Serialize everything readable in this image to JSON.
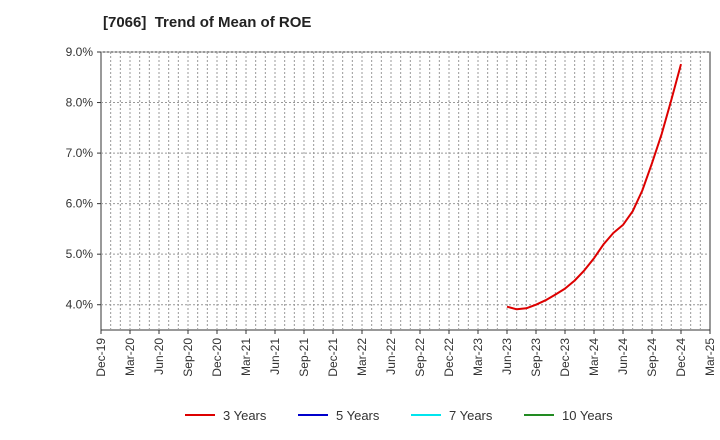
{
  "chart_data": {
    "type": "line",
    "title": "[7066]  Trend of Mean of ROE",
    "xlabel": "",
    "ylabel": "",
    "ylim": [
      3.5,
      9.0
    ],
    "yticks": [
      {
        "value": 4.0,
        "label": "4.0%"
      },
      {
        "value": 5.0,
        "label": "5.0%"
      },
      {
        "value": 6.0,
        "label": "6.0%"
      },
      {
        "value": 7.0,
        "label": "7.0%"
      },
      {
        "value": 8.0,
        "label": "8.0%"
      },
      {
        "value": 9.0,
        "label": "9.0%"
      }
    ],
    "x_categories": [
      "Dec-19",
      "Mar-20",
      "Jun-20",
      "Sep-20",
      "Dec-20",
      "Mar-21",
      "Jun-21",
      "Sep-21",
      "Dec-21",
      "Mar-22",
      "Jun-22",
      "Sep-22",
      "Dec-22",
      "Mar-23",
      "Jun-23",
      "Sep-23",
      "Dec-23",
      "Mar-24",
      "Jun-24",
      "Sep-24",
      "Dec-24",
      "Mar-25"
    ],
    "grid": true,
    "legend_position": "bottom",
    "series": [
      {
        "name": "3 Years",
        "color": "#dd0000",
        "x": [
          "Jun-23",
          "Jul-23",
          "Aug-23",
          "Sep-23",
          "Oct-23",
          "Nov-23",
          "Dec-23",
          "Jan-24",
          "Feb-24",
          "Mar-24",
          "Apr-24",
          "May-24",
          "Jun-24",
          "Jul-24",
          "Aug-24",
          "Sep-24",
          "Oct-24",
          "Nov-24",
          "Dec-24"
        ],
        "values": [
          3.96,
          3.91,
          3.93,
          4.0,
          4.09,
          4.2,
          4.32,
          4.48,
          4.68,
          4.92,
          5.2,
          5.42,
          5.58,
          5.85,
          6.26,
          6.8,
          7.38,
          8.05,
          8.76
        ]
      },
      {
        "name": "5 Years",
        "color": "#0000cc",
        "x": [],
        "values": []
      },
      {
        "name": "7 Years",
        "color": "#00e5ee",
        "x": [],
        "values": []
      },
      {
        "name": "10 Years",
        "color": "#228b22",
        "x": [],
        "values": []
      }
    ]
  }
}
